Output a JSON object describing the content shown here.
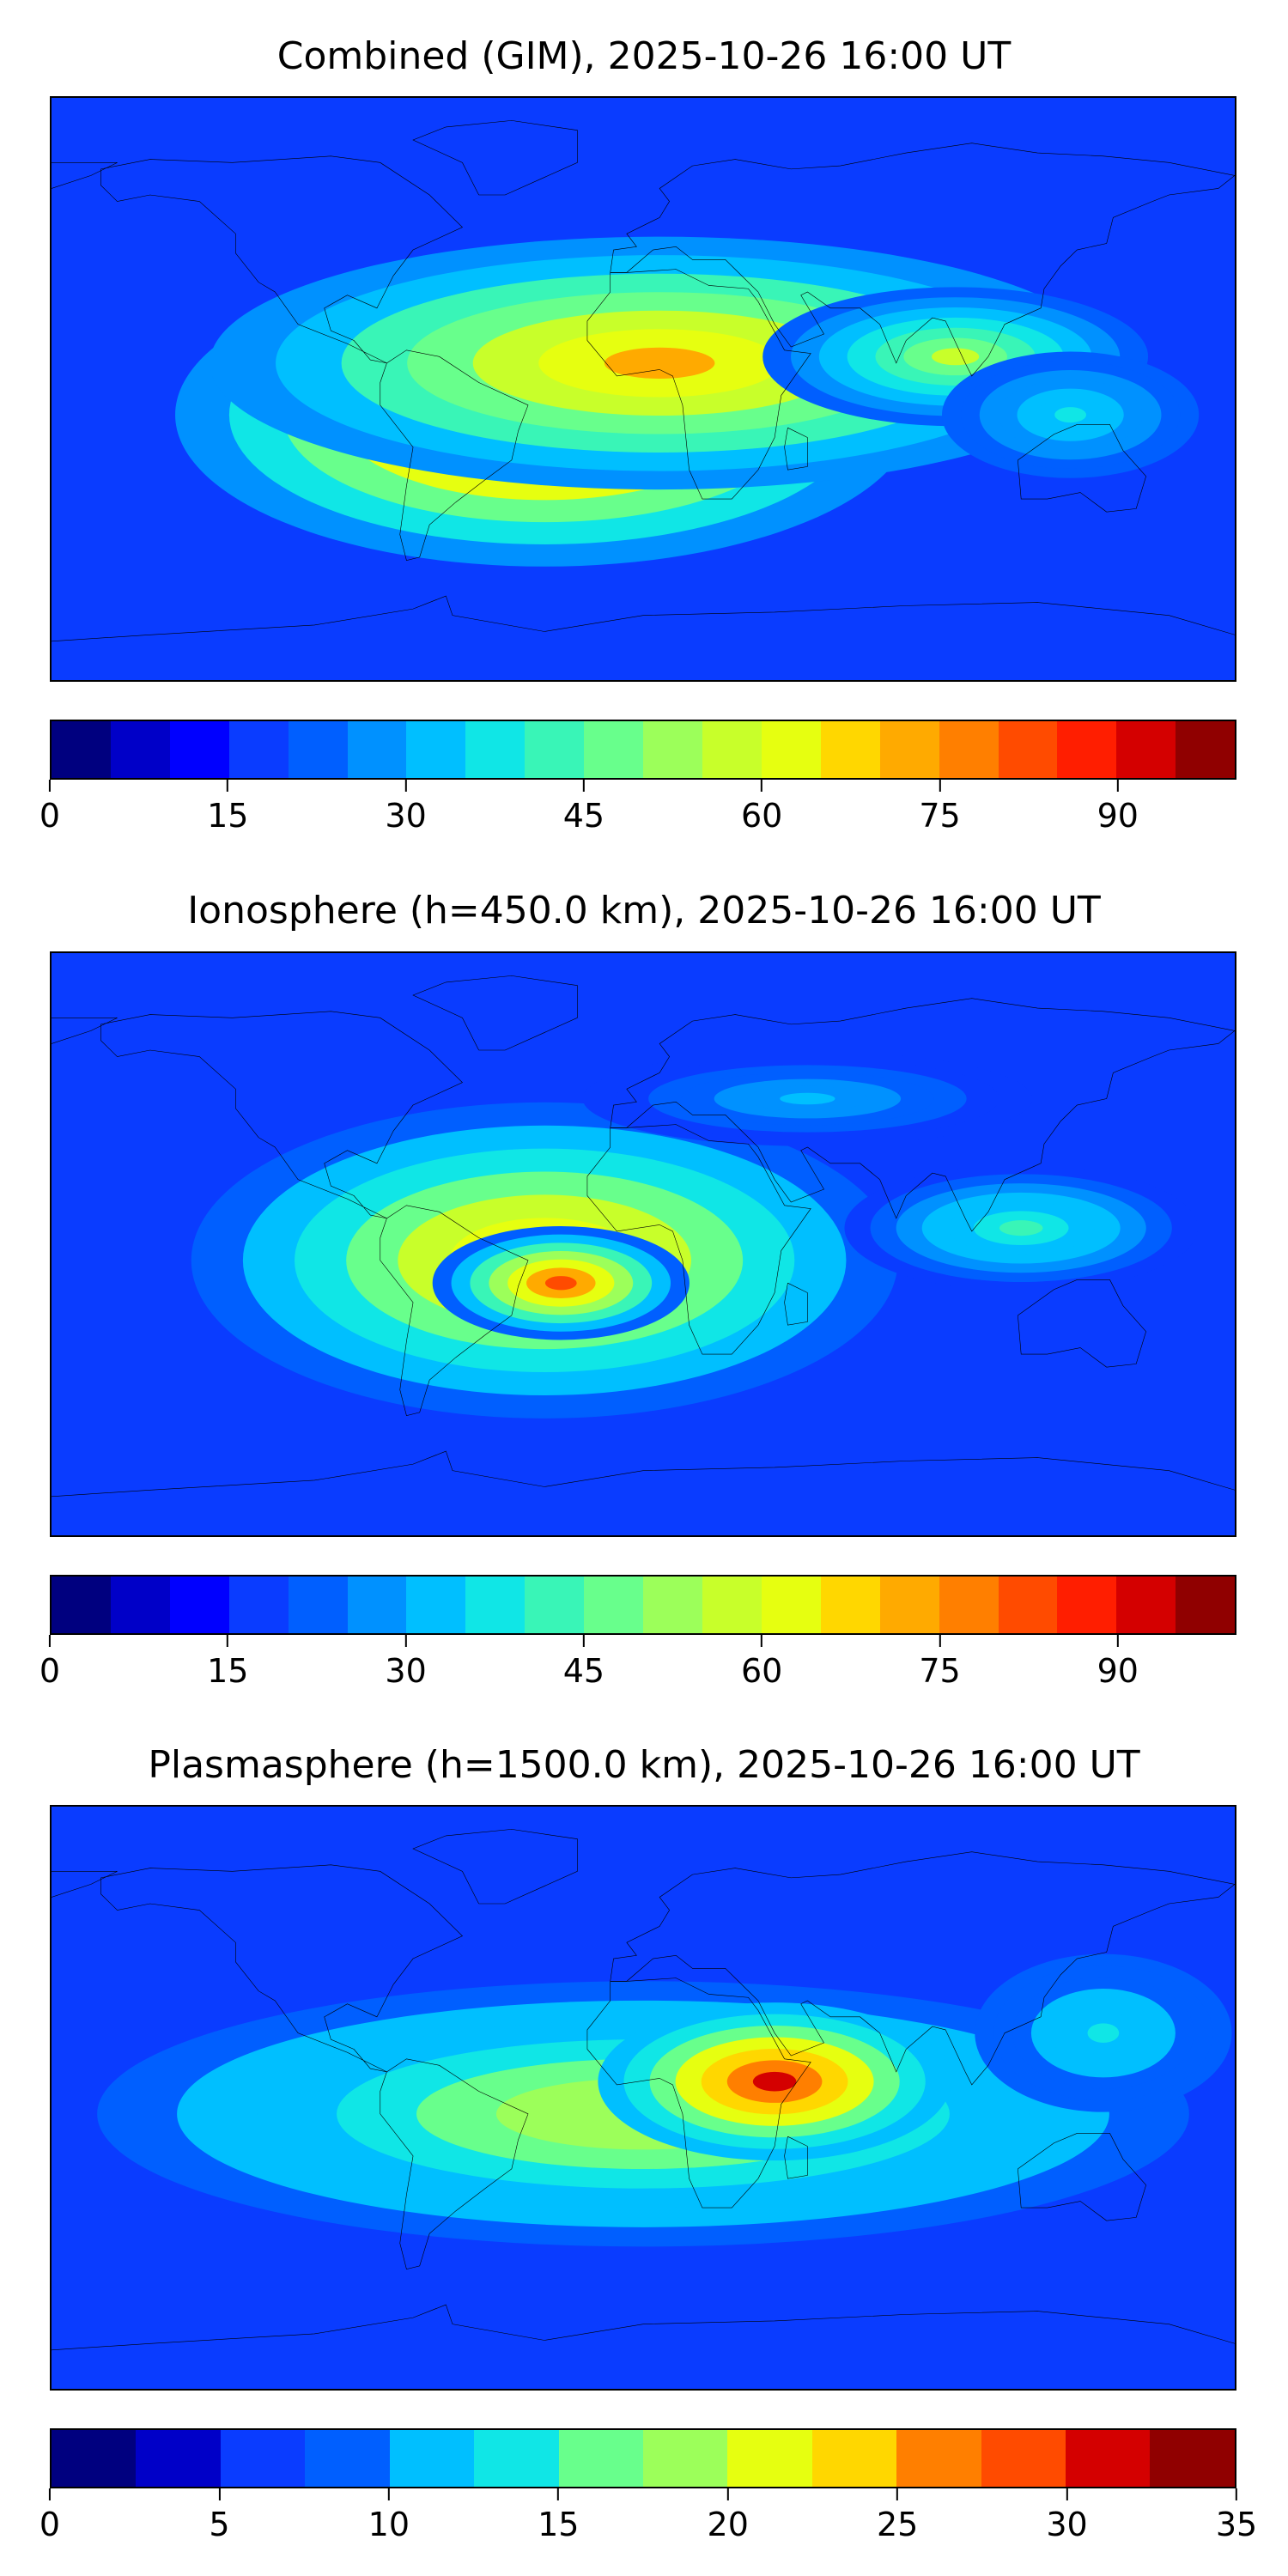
{
  "colors": [
    "#00007f",
    "#0000c8",
    "#0000ff",
    "#0a3cff",
    "#005fff",
    "#0091ff",
    "#00bfff",
    "#10e6e6",
    "#39f5b7",
    "#68ff8c",
    "#9cff5a",
    "#c8ff2a",
    "#e6ff10",
    "#ffd700",
    "#ffaa00",
    "#ff7f00",
    "#ff4b00",
    "#ff1e00",
    "#d40000",
    "#900000"
  ],
  "panels": [
    {
      "title": "Combined (GIM), 2025-10-26 16:00 UT",
      "colorbar": {
        "min": 0,
        "max": 100,
        "levels": 20,
        "ticks": [
          0,
          15,
          30,
          45,
          60,
          75,
          90
        ]
      },
      "background_level": 0.18,
      "blobs": [
        {
          "lon": -30,
          "lat": -8,
          "rx": 115,
          "ry": 48,
          "level": 0.92
        },
        {
          "lon": 5,
          "lat": 8,
          "rx": 140,
          "ry": 40,
          "level": 0.72
        },
        {
          "lon": 95,
          "lat": 10,
          "rx": 60,
          "ry": 22,
          "level": 0.55
        },
        {
          "lon": 130,
          "lat": -8,
          "rx": 40,
          "ry": 20,
          "level": 0.35
        }
      ]
    },
    {
      "title": "Ionosphere  (h=450.0 km), 2025-10-26 16:00 UT",
      "colorbar": {
        "min": 0,
        "max": 100,
        "levels": 20,
        "ticks": [
          0,
          15,
          30,
          45,
          60,
          75,
          90
        ]
      },
      "background_level": 0.15,
      "blobs": [
        {
          "lon": -30,
          "lat": -5,
          "rx": 110,
          "ry": 50,
          "level": 0.72
        },
        {
          "lon": -25,
          "lat": -12,
          "rx": 40,
          "ry": 18,
          "level": 0.8
        },
        {
          "lon": 115,
          "lat": 5,
          "rx": 55,
          "ry": 20,
          "level": 0.42
        },
        {
          "lon": 50,
          "lat": 45,
          "rx": 70,
          "ry": 15,
          "level": 0.3
        }
      ]
    },
    {
      "title": "Plasmasphere (h=1500.0 km), 2025-10-26 16:00 UT",
      "colorbar": {
        "min": 0,
        "max": 35,
        "levels": 14,
        "ticks": [
          0,
          5,
          10,
          15,
          20,
          25,
          30,
          35
        ]
      },
      "background_level": 0.2,
      "blobs": [
        {
          "lon": 0,
          "lat": -5,
          "rx": 170,
          "ry": 42,
          "level": 0.55
        },
        {
          "lon": 40,
          "lat": 5,
          "rx": 55,
          "ry": 25,
          "level": 0.88
        },
        {
          "lon": 140,
          "lat": 20,
          "rx": 40,
          "ry": 25,
          "level": 0.38
        }
      ]
    }
  ]
}
